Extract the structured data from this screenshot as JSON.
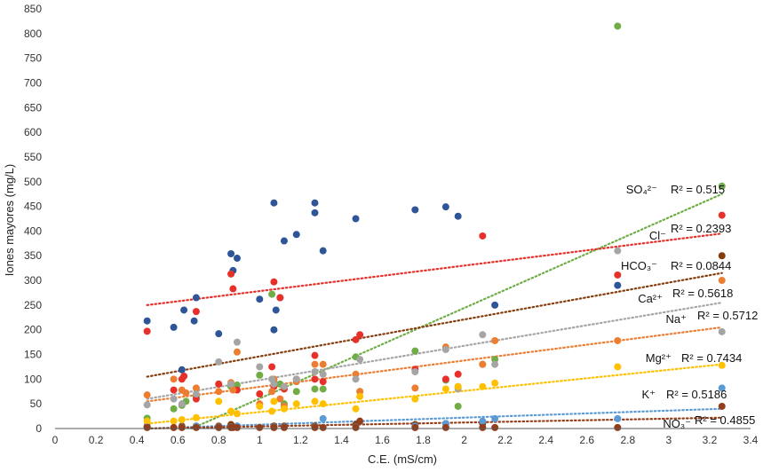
{
  "chart_data": {
    "type": "scatter",
    "xlabel": "C.E. (mS/cm)",
    "ylabel": "Iones mayores (mg/L)",
    "xlim": [
      0,
      3.4
    ],
    "ylim": [
      0,
      850
    ],
    "xticks": [
      "0",
      "0.2",
      "0.4",
      "0.6",
      "0.8",
      "1",
      "1.2",
      "1.4",
      "1.6",
      "1.8",
      "2",
      "2.2",
      "2.4",
      "2.6",
      "2.8",
      "3",
      "3.2",
      "3.4"
    ],
    "yticks": [
      "0",
      "50",
      "100",
      "150",
      "200",
      "250",
      "300",
      "350",
      "400",
      "450",
      "500",
      "550",
      "600",
      "650",
      "700",
      "750",
      "800",
      "850"
    ],
    "grid": false,
    "legend": "none",
    "colors": {
      "SO4": "#70ad47",
      "Cl": "#e8302a",
      "HCO3": "#843c0c",
      "Ca": "#ed7d31",
      "Na": "#a5a5a5",
      "Mg": "#ffc000",
      "K": "#5b9bd5",
      "NO3": "#943d1a",
      "navy": "#2e5597"
    },
    "annotations": {
      "so4": {
        "ion": "SO₄²⁻",
        "r2": "R² = 0.515"
      },
      "cl": {
        "ion": "Cl⁻",
        "r2": "R² = 0.2393"
      },
      "hco3": {
        "ion": "HCO₃⁻",
        "r2": "R² = 0.0844"
      },
      "ca": {
        "ion": "Ca²⁺",
        "r2": "R² = 0.5618"
      },
      "na": {
        "ion": "Na⁺",
        "r2": "R² = 0.5712"
      },
      "mg": {
        "ion": "Mg²⁺",
        "r2": "R² = 0.7434"
      },
      "k": {
        "ion": "K⁺",
        "r2": "R² = 0.5186"
      },
      "no3": {
        "ion": "NO₃⁻",
        "r2": "R² = 0.4855"
      }
    },
    "series": [
      {
        "key": "navy",
        "color": "#2e5597",
        "points": [
          [
            0.45,
            218
          ],
          [
            0.58,
            205
          ],
          [
            0.62,
            119
          ],
          [
            0.63,
            240
          ],
          [
            0.68,
            218
          ],
          [
            0.69,
            265
          ],
          [
            0.8,
            192
          ],
          [
            0.86,
            354
          ],
          [
            0.87,
            320
          ],
          [
            0.89,
            345
          ],
          [
            1.0,
            262
          ],
          [
            1.07,
            457
          ],
          [
            1.07,
            200
          ],
          [
            1.08,
            240
          ],
          [
            1.1,
            265
          ],
          [
            1.12,
            380
          ],
          [
            1.18,
            393
          ],
          [
            1.27,
            457
          ],
          [
            1.27,
            437
          ],
          [
            1.31,
            360
          ],
          [
            1.47,
            425
          ],
          [
            1.76,
            443
          ],
          [
            1.91,
            449
          ],
          [
            1.97,
            430
          ],
          [
            2.15,
            250
          ],
          [
            2.75,
            290
          ]
        ]
      },
      {
        "key": "SO4",
        "color": "#70ad47",
        "points": [
          [
            0.45,
            21
          ],
          [
            0.58,
            40
          ],
          [
            0.62,
            47
          ],
          [
            0.64,
            55
          ],
          [
            0.69,
            65
          ],
          [
            0.8,
            90
          ],
          [
            0.86,
            85
          ],
          [
            0.89,
            88
          ],
          [
            1.0,
            108
          ],
          [
            1.06,
            272
          ],
          [
            1.07,
            95
          ],
          [
            1.1,
            90
          ],
          [
            1.12,
            50
          ],
          [
            1.18,
            75
          ],
          [
            1.27,
            80
          ],
          [
            1.31,
            80
          ],
          [
            1.47,
            145
          ],
          [
            1.49,
            75
          ],
          [
            1.76,
            157
          ],
          [
            1.91,
            98
          ],
          [
            1.97,
            45
          ],
          [
            2.09,
            130
          ],
          [
            2.15,
            140
          ],
          [
            2.75,
            815
          ],
          [
            3.26,
            491
          ]
        ]
      },
      {
        "key": "Cl",
        "color": "#e8302a",
        "points": [
          [
            0.45,
            197
          ],
          [
            0.58,
            78
          ],
          [
            0.62,
            100
          ],
          [
            0.63,
            106
          ],
          [
            0.69,
            60
          ],
          [
            0.69,
            237
          ],
          [
            0.8,
            90
          ],
          [
            0.86,
            313
          ],
          [
            0.87,
            283
          ],
          [
            0.89,
            78
          ],
          [
            1.0,
            70
          ],
          [
            1.06,
            125
          ],
          [
            1.07,
            85
          ],
          [
            1.07,
            297
          ],
          [
            1.1,
            265
          ],
          [
            1.12,
            80
          ],
          [
            1.18,
            100
          ],
          [
            1.27,
            148
          ],
          [
            1.27,
            100
          ],
          [
            1.31,
            95
          ],
          [
            1.47,
            180
          ],
          [
            1.49,
            190
          ],
          [
            1.76,
            120
          ],
          [
            1.91,
            100
          ],
          [
            1.97,
            110
          ],
          [
            2.09,
            390
          ],
          [
            2.75,
            311
          ],
          [
            3.26,
            432
          ]
        ]
      },
      {
        "key": "HCO3",
        "color": "#843c0c",
        "points": [
          [
            0.45,
            5
          ],
          [
            0.62,
            5
          ],
          [
            0.69,
            5
          ],
          [
            0.8,
            5
          ],
          [
            0.86,
            8
          ],
          [
            0.89,
            5
          ],
          [
            1.07,
            5
          ],
          [
            1.12,
            5
          ],
          [
            1.27,
            5
          ],
          [
            1.47,
            8
          ],
          [
            1.76,
            8
          ],
          [
            1.91,
            10
          ],
          [
            2.09,
            10
          ],
          [
            3.26,
            350
          ]
        ]
      },
      {
        "key": "Ca",
        "color": "#ed7d31",
        "points": [
          [
            0.45,
            68
          ],
          [
            0.58,
            100
          ],
          [
            0.62,
            78
          ],
          [
            0.64,
            72
          ],
          [
            0.69,
            82
          ],
          [
            0.8,
            75
          ],
          [
            0.86,
            93
          ],
          [
            0.87,
            78
          ],
          [
            0.89,
            155
          ],
          [
            1.0,
            50
          ],
          [
            1.06,
            75
          ],
          [
            1.07,
            100
          ],
          [
            1.1,
            60
          ],
          [
            1.12,
            45
          ],
          [
            1.18,
            95
          ],
          [
            1.27,
            130
          ],
          [
            1.31,
            130
          ],
          [
            1.47,
            110
          ],
          [
            1.49,
            75
          ],
          [
            1.76,
            82
          ],
          [
            1.91,
            165
          ],
          [
            1.97,
            85
          ],
          [
            2.09,
            130
          ],
          [
            2.15,
            178
          ],
          [
            2.75,
            178
          ],
          [
            3.26,
            300
          ]
        ]
      },
      {
        "key": "Na",
        "color": "#a5a5a5",
        "points": [
          [
            0.45,
            48
          ],
          [
            0.58,
            60
          ],
          [
            0.62,
            50
          ],
          [
            0.69,
            70
          ],
          [
            0.8,
            135
          ],
          [
            0.86,
            90
          ],
          [
            0.89,
            175
          ],
          [
            1.0,
            125
          ],
          [
            1.06,
            100
          ],
          [
            1.07,
            90
          ],
          [
            1.12,
            85
          ],
          [
            1.18,
            100
          ],
          [
            1.27,
            115
          ],
          [
            1.31,
            110
          ],
          [
            1.47,
            100
          ],
          [
            1.49,
            140
          ],
          [
            1.76,
            115
          ],
          [
            1.91,
            160
          ],
          [
            1.97,
            80
          ],
          [
            2.09,
            190
          ],
          [
            2.15,
            130
          ],
          [
            2.75,
            360
          ],
          [
            3.26,
            196
          ]
        ]
      },
      {
        "key": "Mg",
        "color": "#ffc000",
        "points": [
          [
            0.45,
            15
          ],
          [
            0.58,
            15
          ],
          [
            0.62,
            18
          ],
          [
            0.69,
            22
          ],
          [
            0.8,
            55
          ],
          [
            0.86,
            35
          ],
          [
            0.89,
            30
          ],
          [
            1.0,
            45
          ],
          [
            1.06,
            35
          ],
          [
            1.07,
            55
          ],
          [
            1.12,
            40
          ],
          [
            1.18,
            50
          ],
          [
            1.27,
            55
          ],
          [
            1.31,
            50
          ],
          [
            1.47,
            40
          ],
          [
            1.49,
            65
          ],
          [
            1.76,
            60
          ],
          [
            1.91,
            80
          ],
          [
            1.97,
            85
          ],
          [
            2.09,
            85
          ],
          [
            2.15,
            92
          ],
          [
            2.75,
            125
          ],
          [
            3.26,
            128
          ]
        ]
      },
      {
        "key": "K",
        "color": "#5b9bd5",
        "points": [
          [
            0.45,
            3
          ],
          [
            0.62,
            3
          ],
          [
            0.69,
            5
          ],
          [
            0.8,
            3
          ],
          [
            0.86,
            3
          ],
          [
            0.89,
            5
          ],
          [
            1.07,
            3
          ],
          [
            1.12,
            3
          ],
          [
            1.27,
            3
          ],
          [
            1.31,
            20
          ],
          [
            1.47,
            3
          ],
          [
            1.76,
            5
          ],
          [
            1.91,
            10
          ],
          [
            2.09,
            15
          ],
          [
            2.15,
            20
          ],
          [
            2.75,
            20
          ],
          [
            3.26,
            82
          ]
        ]
      },
      {
        "key": "NO3",
        "color": "#943d1a",
        "points": [
          [
            0.45,
            2
          ],
          [
            0.58,
            2
          ],
          [
            0.62,
            2
          ],
          [
            0.69,
            2
          ],
          [
            0.8,
            2
          ],
          [
            0.86,
            2
          ],
          [
            0.87,
            2
          ],
          [
            0.89,
            2
          ],
          [
            1.0,
            2
          ],
          [
            1.07,
            2
          ],
          [
            1.12,
            2
          ],
          [
            1.27,
            2
          ],
          [
            1.31,
            2
          ],
          [
            1.47,
            2
          ],
          [
            1.49,
            15
          ],
          [
            1.76,
            2
          ],
          [
            1.91,
            2
          ],
          [
            2.09,
            2
          ],
          [
            2.15,
            2
          ],
          [
            2.75,
            2
          ],
          [
            3.26,
            45
          ]
        ]
      }
    ],
    "trendlines": [
      {
        "key": "SO4",
        "color": "#70ad47",
        "from": [
          0.45,
          -40
        ],
        "to": [
          3.26,
          475
        ]
      },
      {
        "key": "Cl",
        "color": "#e8302a",
        "from": [
          0.45,
          250
        ],
        "to": [
          3.26,
          395
        ]
      },
      {
        "key": "HCO3",
        "color": "#843c0c",
        "from": [
          0.45,
          105
        ],
        "to": [
          3.26,
          315
        ]
      },
      {
        "key": "Ca",
        "color": "#ed7d31",
        "from": [
          0.45,
          55
        ],
        "to": [
          3.26,
          205
        ]
      },
      {
        "key": "Na",
        "color": "#a5a5a5",
        "from": [
          0.45,
          60
        ],
        "to": [
          3.26,
          255
        ]
      },
      {
        "key": "Mg",
        "color": "#ffc000",
        "from": [
          0.45,
          10
        ],
        "to": [
          3.26,
          130
        ]
      },
      {
        "key": "K",
        "color": "#5b9bd5",
        "from": [
          0.45,
          0
        ],
        "to": [
          3.26,
          40
        ]
      },
      {
        "key": "NO3",
        "color": "#943d1a",
        "from": [
          0.45,
          0
        ],
        "to": [
          3.26,
          22
        ]
      }
    ]
  }
}
